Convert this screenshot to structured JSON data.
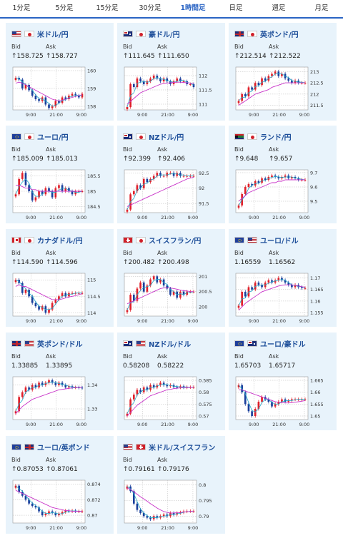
{
  "tabs": [
    {
      "label": "1分足",
      "active": false
    },
    {
      "label": "5分足",
      "active": false
    },
    {
      "label": "15分足",
      "active": false
    },
    {
      "label": "30分足",
      "active": false
    },
    {
      "label": "1時間足",
      "active": true
    },
    {
      "label": "日足",
      "active": false
    },
    {
      "label": "週足",
      "active": false
    },
    {
      "label": "月足",
      "active": false
    }
  ],
  "labels": {
    "bid": "Bid",
    "ask": "Ask"
  },
  "colors": {
    "up": "#e0202a",
    "down": "#1a3f9c",
    "ma_short": "#23a9c9",
    "ma_long": "#c832c8",
    "title": "#1e4f9a",
    "card_bg": "#e8f3fb"
  },
  "cards": [
    {
      "name": "usd-jpy",
      "title": "米ドル/円",
      "flags": [
        "us",
        "jp"
      ],
      "bid": "↑158.725",
      "ask": "↑158.727",
      "chart_data": {
        "type": "candlestick",
        "x_ticks": [
          "9:00",
          "21:00",
          "9:00"
        ],
        "y_ticks": [
          "160",
          "159",
          "158"
        ],
        "ylim": [
          157.8,
          160.2
        ],
        "close": [
          159.6,
          159.5,
          159.0,
          159.2,
          158.9,
          158.6,
          158.4,
          158.3,
          158.5,
          158.1,
          157.9,
          158.0,
          158.3,
          158.2,
          158.5,
          158.4,
          158.6,
          158.7,
          158.6,
          158.5,
          158.7
        ],
        "ma_long": [
          159.3,
          159.35,
          159.3,
          159.2,
          159.1,
          159.0,
          158.9,
          158.8,
          158.7,
          158.6,
          158.5,
          158.4,
          158.35,
          158.3,
          158.35,
          158.4,
          158.45,
          158.5,
          158.55,
          158.6,
          158.65
        ]
      }
    },
    {
      "name": "aud-jpy",
      "title": "豪ドル/円",
      "flags": [
        "au",
        "jp"
      ],
      "bid": "↑111.645",
      "ask": "↑111.650",
      "chart_data": {
        "type": "candlestick",
        "x_ticks": [
          "9:00",
          "21:00",
          "9:00"
        ],
        "y_ticks": [
          "112",
          "111.5",
          "111"
        ],
        "ylim": [
          110.8,
          112.3
        ],
        "close": [
          110.9,
          111.7,
          111.6,
          111.9,
          111.8,
          111.7,
          111.8,
          111.9,
          112.0,
          111.9,
          111.8,
          111.9,
          111.8,
          111.7,
          111.8,
          111.9,
          111.8,
          111.8,
          111.7,
          111.7,
          111.6
        ],
        "ma_long": [
          111.0,
          111.1,
          111.2,
          111.3,
          111.4,
          111.45,
          111.5,
          111.55,
          111.6,
          111.65,
          111.7,
          111.72,
          111.74,
          111.75,
          111.76,
          111.77,
          111.77,
          111.76,
          111.75,
          111.74,
          111.72
        ]
      }
    },
    {
      "name": "gbp-jpy",
      "title": "英ポンド/円",
      "flags": [
        "gb",
        "jp"
      ],
      "bid": "↑212.514",
      "ask": "↑212.522",
      "chart_data": {
        "type": "candlestick",
        "x_ticks": [
          "9:00",
          "21:00",
          "9:00"
        ],
        "y_ticks": [
          "213",
          "212.5",
          "212",
          "211.5"
        ],
        "ylim": [
          211.3,
          213.2
        ],
        "close": [
          211.7,
          212.0,
          211.9,
          212.3,
          212.2,
          212.5,
          212.4,
          212.7,
          212.6,
          212.8,
          212.9,
          213.0,
          212.8,
          212.9,
          212.7,
          212.6,
          212.5,
          212.6,
          212.5,
          212.5,
          212.5
        ],
        "ma_long": [
          211.5,
          211.6,
          211.7,
          211.8,
          211.9,
          212.0,
          212.05,
          212.1,
          212.15,
          212.2,
          212.3,
          212.35,
          212.4,
          212.45,
          212.5,
          212.5,
          212.5,
          212.5,
          212.5,
          212.5,
          212.5
        ]
      }
    },
    {
      "name": "eur-jpy",
      "title": "ユーロ/円",
      "flags": [
        "eu",
        "jp"
      ],
      "bid": "↑185.009",
      "ask": "↑185.013",
      "chart_data": {
        "type": "candlestick",
        "x_ticks": [
          "9:00",
          "21:00",
          "9:00"
        ],
        "y_ticks": [
          "185.5",
          "185",
          "184.5"
        ],
        "ylim": [
          184.3,
          185.7
        ],
        "close": [
          184.9,
          185.4,
          185.6,
          185.2,
          185.0,
          184.7,
          184.8,
          185.0,
          184.9,
          185.1,
          185.0,
          184.8,
          185.1,
          185.2,
          185.0,
          185.1,
          185.0,
          184.9,
          185.0,
          185.0,
          185.0
        ],
        "ma_long": [
          185.2,
          185.2,
          185.15,
          185.1,
          185.1,
          185.05,
          185.05,
          185.0,
          185.0,
          185.0,
          185.0,
          185.0,
          185.0,
          185.0,
          185.0,
          185.0,
          185.0,
          185.0,
          185.0,
          185.0,
          185.0
        ]
      }
    },
    {
      "name": "nzd-jpy",
      "title": "NZドル/円",
      "flags": [
        "nz",
        "jp"
      ],
      "bid": "↑92.399",
      "ask": "↑92.406",
      "chart_data": {
        "type": "candlestick",
        "x_ticks": [
          "9:00",
          "21:00",
          "9:00"
        ],
        "y_ticks": [
          "92.5",
          "92",
          "91.5"
        ],
        "ylim": [
          91.2,
          92.6
        ],
        "close": [
          91.3,
          91.8,
          91.9,
          92.1,
          92.0,
          92.3,
          92.2,
          92.3,
          92.4,
          92.5,
          92.4,
          92.4,
          92.5,
          92.5,
          92.4,
          92.5,
          92.4,
          92.4,
          92.4,
          92.4,
          92.4
        ],
        "ma_long": [
          91.4,
          91.45,
          91.5,
          91.55,
          91.6,
          91.65,
          91.7,
          91.75,
          91.8,
          91.85,
          91.9,
          91.95,
          92.0,
          92.05,
          92.1,
          92.15,
          92.2,
          92.25,
          92.3,
          92.33,
          92.36
        ]
      }
    },
    {
      "name": "zar-jpy",
      "title": "ランド/円",
      "flags": [
        "za",
        "jp"
      ],
      "bid": "↑9.648",
      "ask": "↑9.657",
      "chart_data": {
        "type": "candlestick",
        "x_ticks": [
          "9:00",
          "21:00",
          "9:00"
        ],
        "y_ticks": [
          "9.7",
          "9.6",
          "9.5"
        ],
        "ylim": [
          9.42,
          9.72
        ],
        "close": [
          9.47,
          9.55,
          9.6,
          9.62,
          9.61,
          9.64,
          9.63,
          9.66,
          9.65,
          9.67,
          9.68,
          9.67,
          9.66,
          9.67,
          9.68,
          9.66,
          9.67,
          9.66,
          9.65,
          9.65,
          9.65
        ],
        "ma_long": [
          9.5,
          9.52,
          9.54,
          9.56,
          9.57,
          9.58,
          9.59,
          9.6,
          9.61,
          9.62,
          9.63,
          9.63,
          9.64,
          9.64,
          9.65,
          9.65,
          9.65,
          9.65,
          9.65,
          9.65,
          9.65
        ]
      }
    },
    {
      "name": "cad-jpy",
      "title": "カナダドル/円",
      "flags": [
        "ca",
        "jp"
      ],
      "bid": "↑114.590",
      "ask": "↑114.596",
      "chart_data": {
        "type": "candlestick",
        "x_ticks": [
          "9:00",
          "21:00",
          "9:00"
        ],
        "y_ticks": [
          "115",
          "114.5",
          "114"
        ],
        "ylim": [
          113.9,
          115.2
        ],
        "close": [
          115.0,
          114.9,
          114.6,
          114.7,
          114.5,
          114.3,
          114.2,
          114.1,
          114.2,
          114.0,
          114.1,
          114.3,
          114.4,
          114.5,
          114.6,
          114.5,
          114.6,
          114.6,
          114.6,
          114.6,
          114.6
        ],
        "ma_long": [
          114.8,
          114.85,
          114.8,
          114.8,
          114.75,
          114.7,
          114.65,
          114.6,
          114.55,
          114.5,
          114.45,
          114.4,
          114.4,
          114.4,
          114.42,
          114.45,
          114.48,
          114.5,
          114.52,
          114.55,
          114.58
        ]
      }
    },
    {
      "name": "chf-jpy",
      "title": "スイスフラン/円",
      "flags": [
        "ch",
        "jp"
      ],
      "bid": "↑200.482",
      "ask": "↑200.498",
      "chart_data": {
        "type": "candlestick",
        "x_ticks": [
          "9:00",
          "21:00",
          "9:00"
        ],
        "y_ticks": [
          "201",
          "200.5",
          "200"
        ],
        "ylim": [
          199.7,
          201.1
        ],
        "close": [
          199.9,
          200.4,
          200.2,
          200.6,
          200.8,
          200.5,
          200.7,
          200.9,
          201.0,
          200.8,
          200.9,
          200.7,
          200.6,
          200.4,
          200.5,
          200.3,
          200.5,
          200.4,
          200.5,
          200.5,
          200.5
        ],
        "ma_long": [
          200.1,
          200.15,
          200.2,
          200.25,
          200.3,
          200.35,
          200.4,
          200.45,
          200.5,
          200.55,
          200.6,
          200.62,
          200.63,
          200.62,
          200.6,
          200.58,
          200.55,
          200.53,
          200.52,
          200.5,
          200.5
        ]
      }
    },
    {
      "name": "eur-usd",
      "title": "ユーロ/ドル",
      "flags": [
        "eu",
        "us"
      ],
      "bid": "1.16559",
      "ask": "1.16562",
      "chart_data": {
        "type": "candlestick",
        "x_ticks": [
          "9:00",
          "21:00",
          "9:00"
        ],
        "y_ticks": [
          "1.17",
          "1.165",
          "1.16",
          "1.155"
        ],
        "ylim": [
          1.1535,
          1.172
        ],
        "close": [
          1.158,
          1.164,
          1.162,
          1.166,
          1.165,
          1.168,
          1.167,
          1.166,
          1.168,
          1.169,
          1.168,
          1.169,
          1.17,
          1.169,
          1.168,
          1.167,
          1.166,
          1.167,
          1.166,
          1.1656,
          1.1656
        ],
        "ma_long": [
          1.156,
          1.1575,
          1.159,
          1.16,
          1.161,
          1.162,
          1.163,
          1.164,
          1.1645,
          1.165,
          1.1655,
          1.166,
          1.1665,
          1.1668,
          1.167,
          1.167,
          1.167,
          1.1668,
          1.1665,
          1.1662,
          1.166
        ]
      }
    },
    {
      "name": "gbp-usd",
      "title": "英ポンド/ドル",
      "flags": [
        "gb",
        "us"
      ],
      "bid": "1.33885",
      "ask": "1.33895",
      "chart_data": {
        "type": "candlestick",
        "x_ticks": [
          "9:00",
          "21:00",
          "9:00"
        ],
        "y_ticks": [
          "1.34",
          "1.33"
        ],
        "ylim": [
          1.3255,
          1.3435
        ],
        "close": [
          1.329,
          1.335,
          1.337,
          1.339,
          1.338,
          1.34,
          1.339,
          1.341,
          1.34,
          1.341,
          1.342,
          1.341,
          1.34,
          1.341,
          1.34,
          1.339,
          1.3395,
          1.339,
          1.339,
          1.3389,
          1.3388
        ],
        "ma_long": [
          1.328,
          1.3295,
          1.331,
          1.332,
          1.333,
          1.334,
          1.3345,
          1.335,
          1.3355,
          1.336,
          1.3365,
          1.337,
          1.3375,
          1.338,
          1.3382,
          1.3384,
          1.3386,
          1.3388,
          1.3389,
          1.339,
          1.339
        ]
      }
    },
    {
      "name": "nzd-usd",
      "title": "NZドル/ドル",
      "flags": [
        "nz",
        "us"
      ],
      "bid": "0.58208",
      "ask": "0.58222",
      "chart_data": {
        "type": "candlestick",
        "x_ticks": [
          "9:00",
          "21:00",
          "9:00"
        ],
        "y_ticks": [
          "0.585",
          "0.58",
          "0.575",
          "0.57"
        ],
        "ylim": [
          0.5685,
          0.5865
        ],
        "close": [
          0.571,
          0.577,
          0.579,
          0.581,
          0.58,
          0.582,
          0.581,
          0.583,
          0.582,
          0.583,
          0.584,
          0.583,
          0.5825,
          0.583,
          0.5822,
          0.582,
          0.5825,
          0.582,
          0.5821,
          0.5821,
          0.5821
        ],
        "ma_long": [
          0.57,
          0.5715,
          0.573,
          0.5745,
          0.5755,
          0.5765,
          0.5775,
          0.5785,
          0.579,
          0.5795,
          0.58,
          0.5805,
          0.581,
          0.5812,
          0.5815,
          0.5817,
          0.5818,
          0.5819,
          0.582,
          0.582,
          0.5821
        ]
      }
    },
    {
      "name": "eur-aud",
      "title": "ユーロ/豪ドル",
      "flags": [
        "eu",
        "au"
      ],
      "bid": "1.65703",
      "ask": "1.65717",
      "chart_data": {
        "type": "candlestick",
        "x_ticks": [
          "9:00",
          "21:00",
          "9:00"
        ],
        "y_ticks": [
          "1.665",
          "1.66",
          "1.655",
          "1.65"
        ],
        "ylim": [
          1.6485,
          1.6665
        ],
        "close": [
          1.663,
          1.66,
          1.655,
          1.652,
          1.65,
          1.653,
          1.656,
          1.658,
          1.657,
          1.656,
          1.654,
          1.655,
          1.656,
          1.657,
          1.656,
          1.6565,
          1.657,
          1.657,
          1.657,
          1.657,
          1.657
        ],
        "ma_long": [
          1.661,
          1.661,
          1.6605,
          1.66,
          1.6595,
          1.659,
          1.6585,
          1.658,
          1.6575,
          1.657,
          1.6565,
          1.656,
          1.6558,
          1.6556,
          1.6555,
          1.6555,
          1.6556,
          1.6558,
          1.656,
          1.6562,
          1.6565
        ]
      }
    },
    {
      "name": "eur-gbp",
      "title": "ユーロ/英ポンド",
      "flags": [
        "eu",
        "gb"
      ],
      "bid": "↑0.87053",
      "ask": "↑0.87061",
      "chart_data": {
        "type": "candlestick",
        "x_ticks": [
          "9:00",
          "21:00",
          "9:00"
        ],
        "y_ticks": [
          "0.874",
          "0.872",
          "0.87"
        ],
        "ylim": [
          0.869,
          0.8745
        ],
        "close": [
          0.8738,
          0.873,
          0.8725,
          0.872,
          0.8715,
          0.8712,
          0.871,
          0.8705,
          0.87,
          0.8702,
          0.8705,
          0.8703,
          0.87,
          0.8702,
          0.8704,
          0.8706,
          0.8705,
          0.8706,
          0.8705,
          0.8705,
          0.8705
        ],
        "ma_long": [
          0.8732,
          0.873,
          0.8728,
          0.8726,
          0.8724,
          0.8722,
          0.872,
          0.8718,
          0.8716,
          0.8714,
          0.8712,
          0.871,
          0.8709,
          0.8708,
          0.8707,
          0.8706,
          0.8706,
          0.8705,
          0.8705,
          0.8705,
          0.8705
        ]
      }
    },
    {
      "name": "usd-chf",
      "title": "米ドル/スイスフラン",
      "flags": [
        "us",
        "ch"
      ],
      "bid": "↑0.79161",
      "ask": "↑0.79176",
      "chart_data": {
        "type": "candlestick",
        "x_ticks": [
          "9:00",
          "21:00",
          "9:00"
        ],
        "y_ticks": [
          "0.8",
          "0.795",
          "0.79"
        ],
        "ylim": [
          0.7878,
          0.8015
        ],
        "close": [
          0.7995,
          0.798,
          0.794,
          0.792,
          0.791,
          0.79,
          0.7895,
          0.789,
          0.79,
          0.7895,
          0.79,
          0.7905,
          0.79,
          0.791,
          0.7905,
          0.791,
          0.7912,
          0.7915,
          0.7916,
          0.7916,
          0.7916
        ],
        "ma_long": [
          0.799,
          0.7985,
          0.7978,
          0.797,
          0.7962,
          0.7955,
          0.7948,
          0.794,
          0.7933,
          0.7926,
          0.792,
          0.7915,
          0.7912,
          0.791,
          0.791,
          0.7911,
          0.7912,
          0.7913,
          0.7914,
          0.7915,
          0.7916
        ]
      }
    }
  ]
}
